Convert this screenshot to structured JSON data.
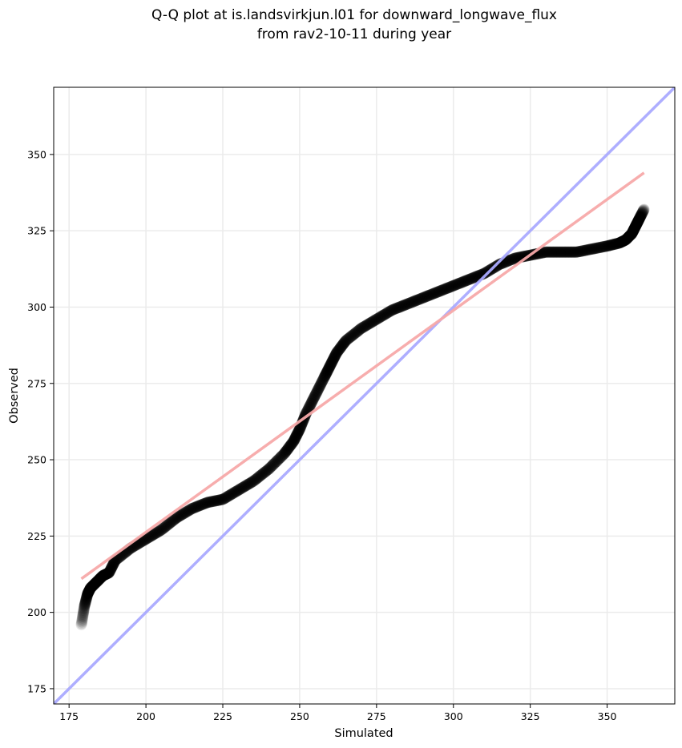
{
  "chart_data": {
    "type": "scatter",
    "title_lines": [
      "Q-Q plot at is.landsvirkjun.l01 for downward_longwave_flux",
      "from rav2-10-11 during year"
    ],
    "xlabel": "Simulated",
    "ylabel": "Observed",
    "xlim": [
      170,
      372
    ],
    "ylim": [
      170,
      372
    ],
    "x_ticks": [
      175,
      200,
      225,
      250,
      275,
      300,
      325,
      350
    ],
    "y_ticks": [
      175,
      200,
      225,
      250,
      275,
      300,
      325,
      350
    ],
    "grid": true,
    "colors": {
      "points": "#000000",
      "identity_line": "#aaaaff",
      "fit_line": "#f7a9a9",
      "grid": "#ebebeb"
    },
    "identity_line": {
      "x": [
        170,
        372
      ],
      "y": [
        170,
        372
      ]
    },
    "fit_line": {
      "x": [
        179,
        362
      ],
      "y": [
        211,
        344
      ]
    },
    "qq_curve": {
      "simulated": [
        179,
        180,
        181,
        182,
        184,
        186,
        188,
        190,
        195,
        200,
        205,
        210,
        215,
        220,
        225,
        230,
        235,
        240,
        245,
        248,
        250,
        252,
        255,
        258,
        260,
        262,
        265,
        270,
        275,
        280,
        285,
        290,
        295,
        300,
        305,
        310,
        315,
        320,
        325,
        330,
        335,
        340,
        345,
        350,
        354,
        356,
        358,
        359,
        360,
        361,
        362
      ],
      "observed": [
        196,
        202,
        206,
        208,
        210,
        212,
        213,
        217,
        221,
        224,
        227,
        231,
        234,
        236,
        237,
        240,
        243,
        247,
        252,
        256,
        260,
        265,
        271,
        277,
        281,
        285,
        289,
        293,
        296,
        299,
        301,
        303,
        305,
        307,
        309,
        311,
        314,
        316,
        317,
        318,
        318,
        318,
        319,
        320,
        321,
        322,
        324,
        326,
        328,
        330,
        332
      ]
    }
  }
}
